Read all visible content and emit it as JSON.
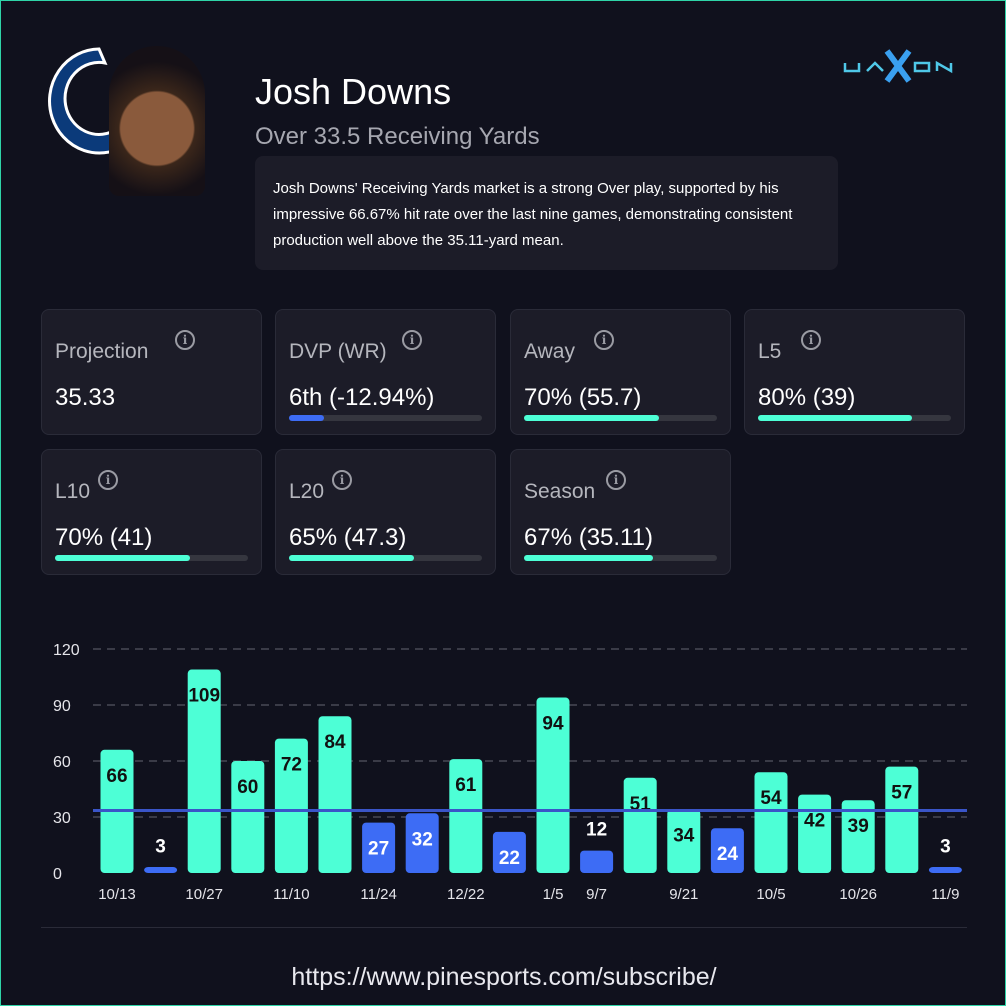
{
  "player": {
    "name": "Josh Downs",
    "market": "Over 33.5 Receiving Yards",
    "summary": "Josh Downs' Receiving Yards market is a strong Over play, supported by his impressive 66.67% hit rate over the last nine games, demonstrating consistent production well above the 35.11-yard mean.",
    "team_logo": "Indianapolis Colts horseshoe"
  },
  "brand": {
    "logo": "JAXON"
  },
  "stats": [
    {
      "label": "Projection",
      "value": "35.33"
    },
    {
      "label": "DVP (WR)",
      "value": "6th (-12.94%)",
      "bar": 0.18,
      "color": "#3d6cf5"
    },
    {
      "label": "Away",
      "value": "70% (55.7)",
      "bar": 0.7,
      "color": "#4dffd6"
    },
    {
      "label": "L5",
      "value": "80% (39)",
      "bar": 0.8,
      "color": "#4dffd6"
    },
    {
      "label": "L10",
      "value": "70% (41)",
      "bar": 0.7,
      "color": "#4dffd6"
    },
    {
      "label": "L20",
      "value": "65% (47.3)",
      "bar": 0.65,
      "color": "#4dffd6"
    },
    {
      "label": "Season",
      "value": "67% (35.11)",
      "bar": 0.67,
      "color": "#4dffd6"
    }
  ],
  "chart_data": {
    "type": "bar",
    "values": [
      66,
      3,
      109,
      60,
      72,
      84,
      27,
      32,
      61,
      22,
      94,
      12,
      51,
      34,
      24,
      54,
      42,
      39,
      57,
      3
    ],
    "x_labels": [
      "10/13",
      "",
      "10/27",
      "",
      "11/10",
      "",
      "11/24",
      "",
      "12/22",
      "",
      "1/5",
      "9/7",
      "",
      "9/21",
      "",
      "10/5",
      "",
      "10/26",
      "",
      "11/9"
    ],
    "ylim": [
      0,
      120
    ],
    "yticks": [
      0,
      30,
      60,
      90,
      120
    ],
    "line": 33.5,
    "colors": {
      "over": "#4dffd6",
      "under": "#3d6cf5",
      "line": "#3a55c8"
    }
  },
  "footer": {
    "url": "https://www.pinesports.com/subscribe/"
  }
}
